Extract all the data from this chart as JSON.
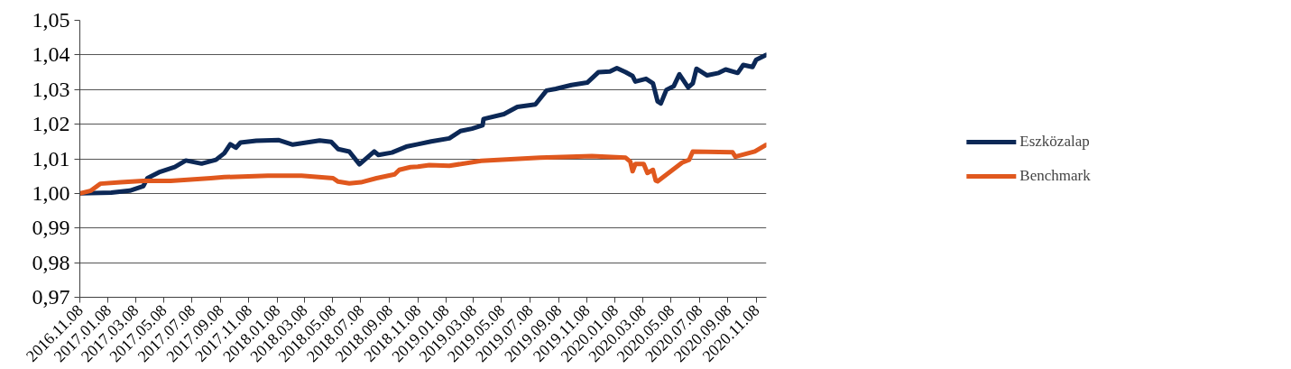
{
  "chart_data": {
    "type": "line",
    "xlim": [
      "2016-11-08",
      "2020-11-30"
    ],
    "xticks": [
      {
        "value": "2016-11-08",
        "label": "2016.11.08"
      },
      {
        "value": "2017-01-08",
        "label": "2017.01.08"
      },
      {
        "value": "2017-03-08",
        "label": "2017.03.08"
      },
      {
        "value": "2017-05-08",
        "label": "2017.05.08"
      },
      {
        "value": "2017-07-08",
        "label": "2017.07.08"
      },
      {
        "value": "2017-09-08",
        "label": "2017.09.08"
      },
      {
        "value": "2017-11-08",
        "label": "2017.11.08"
      },
      {
        "value": "2018-01-08",
        "label": "2018.01.08"
      },
      {
        "value": "2018-03-08",
        "label": "2018.03.08"
      },
      {
        "value": "2018-05-08",
        "label": "2018.05.08"
      },
      {
        "value": "2018-07-08",
        "label": "2018.07.08"
      },
      {
        "value": "2018-09-08",
        "label": "2018.09.08"
      },
      {
        "value": "2018-11-08",
        "label": "2018.11.08"
      },
      {
        "value": "2019-01-08",
        "label": "2019.01.08"
      },
      {
        "value": "2019-03-08",
        "label": "2019.03.08"
      },
      {
        "value": "2019-05-08",
        "label": "2019.05.08"
      },
      {
        "value": "2019-07-08",
        "label": "2019.07.08"
      },
      {
        "value": "2019-09-08",
        "label": "2019.09.08"
      },
      {
        "value": "2019-11-08",
        "label": "2019.11.08"
      },
      {
        "value": "2020-01-08",
        "label": "2020.01.08"
      },
      {
        "value": "2020-03-08",
        "label": "2020.03.08"
      },
      {
        "value": "2020-05-08",
        "label": "2020.05.08"
      },
      {
        "value": "2020-07-08",
        "label": "2020.07.08"
      },
      {
        "value": "2020-09-08",
        "label": "2020.09.08"
      },
      {
        "value": "2020-11-08",
        "label": "2020.11.08"
      }
    ],
    "ylim": [
      0.97,
      1.05
    ],
    "yticks": [
      {
        "value": 0.97,
        "label": "0,97"
      },
      {
        "value": 0.98,
        "label": "0,98"
      },
      {
        "value": 0.99,
        "label": "0,99"
      },
      {
        "value": 1.0,
        "label": "1,00"
      },
      {
        "value": 1.01,
        "label": "1,01"
      },
      {
        "value": 1.02,
        "label": "1,02"
      },
      {
        "value": 1.03,
        "label": "1,03"
      },
      {
        "value": 1.04,
        "label": "1,04"
      },
      {
        "value": 1.05,
        "label": "1,05"
      }
    ],
    "grid": "y",
    "legend": "right",
    "marker": "none",
    "line_style": "solid",
    "series": [
      {
        "name": "Eszközalap",
        "color": "#0c2856",
        "x": [
          "2016-11-08",
          "2017-01-15",
          "2017-02-24",
          "2017-03-25",
          "2017-04-03",
          "2017-04-28",
          "2017-06-01",
          "2017-06-25",
          "2017-07-29",
          "2017-08-29",
          "2017-09-16",
          "2017-09-29",
          "2017-10-11",
          "2017-10-21",
          "2017-11-24",
          "2018-01-12",
          "2018-02-11",
          "2018-04-10",
          "2018-05-05",
          "2018-05-20",
          "2018-06-13",
          "2018-07-05",
          "2018-08-06",
          "2018-08-15",
          "2018-09-13",
          "2018-10-14",
          "2018-11-08",
          "2018-12-07",
          "2019-01-15",
          "2019-02-08",
          "2019-03-05",
          "2019-03-28",
          "2019-03-30",
          "2019-05-13",
          "2019-06-11",
          "2019-07-20",
          "2019-08-13",
          "2019-09-02",
          "2019-10-06",
          "2019-11-09",
          "2019-12-03",
          "2019-12-28",
          "2020-01-12",
          "2020-01-31",
          "2020-02-15",
          "2020-02-21",
          "2020-03-15",
          "2020-03-30",
          "2020-04-09",
          "2020-04-16",
          "2020-04-28",
          "2020-05-14",
          "2020-05-26",
          "2020-06-14",
          "2020-06-24",
          "2020-07-02",
          "2020-07-25",
          "2020-08-19",
          "2020-09-03",
          "2020-09-29",
          "2020-10-11",
          "2020-10-31",
          "2020-11-08",
          "2020-11-29"
        ],
        "values": [
          1.0,
          1.0002,
          1.0008,
          1.0021,
          1.0044,
          1.0061,
          1.0076,
          1.0095,
          1.0086,
          1.0097,
          1.0116,
          1.0142,
          1.0132,
          1.0147,
          1.0152,
          1.0154,
          1.0141,
          1.0153,
          1.0149,
          1.0128,
          1.0121,
          1.0084,
          1.0121,
          1.0111,
          1.0118,
          1.0135,
          1.0142,
          1.015,
          1.0159,
          1.018,
          1.0187,
          1.0197,
          1.0215,
          1.0229,
          1.025,
          1.0257,
          1.0297,
          1.0302,
          1.0313,
          1.032,
          1.035,
          1.0352,
          1.0362,
          1.035,
          1.0339,
          1.0323,
          1.0331,
          1.0318,
          1.0266,
          1.026,
          1.0299,
          1.031,
          1.0344,
          1.0306,
          1.0318,
          1.036,
          1.0341,
          1.0348,
          1.0358,
          1.0348,
          1.0371,
          1.0365,
          1.0386,
          1.04
        ]
      },
      {
        "name": "Benchmark",
        "color": "#e0581e",
        "x": [
          "2016-11-08",
          "2016-12-02",
          "2016-12-22",
          "2017-02-04",
          "2017-03-25",
          "2017-05-23",
          "2017-08-18",
          "2017-09-16",
          "2017-12-19",
          "2018-03-02",
          "2018-05-09",
          "2018-05-20",
          "2018-06-13",
          "2018-07-08",
          "2018-08-11",
          "2018-09-19",
          "2018-09-29",
          "2018-10-23",
          "2018-11-08",
          "2018-12-03",
          "2019-01-15",
          "2019-03-25",
          "2019-07-30",
          "2019-11-19",
          "2020-01-31",
          "2020-02-10",
          "2020-02-15",
          "2020-02-21",
          "2020-03-10",
          "2020-03-18",
          "2020-03-30",
          "2020-04-05",
          "2020-04-09",
          "2020-06-01",
          "2020-06-16",
          "2020-06-24",
          "2020-09-18",
          "2020-09-24",
          "2020-11-05",
          "2020-11-29"
        ],
        "values": [
          1.0,
          1.0008,
          1.0028,
          1.0032,
          1.0036,
          1.0036,
          1.0044,
          1.0047,
          1.0051,
          1.0051,
          1.0044,
          1.0034,
          1.0029,
          1.0032,
          1.0044,
          1.0055,
          1.0068,
          1.0076,
          1.0077,
          1.0082,
          1.008,
          1.0094,
          1.0103,
          1.0108,
          1.0103,
          1.0092,
          1.0064,
          1.0085,
          1.0085,
          1.0059,
          1.0068,
          1.0037,
          1.0035,
          1.0089,
          1.0097,
          1.0121,
          1.0119,
          1.0106,
          1.0121,
          1.014
        ]
      }
    ]
  }
}
